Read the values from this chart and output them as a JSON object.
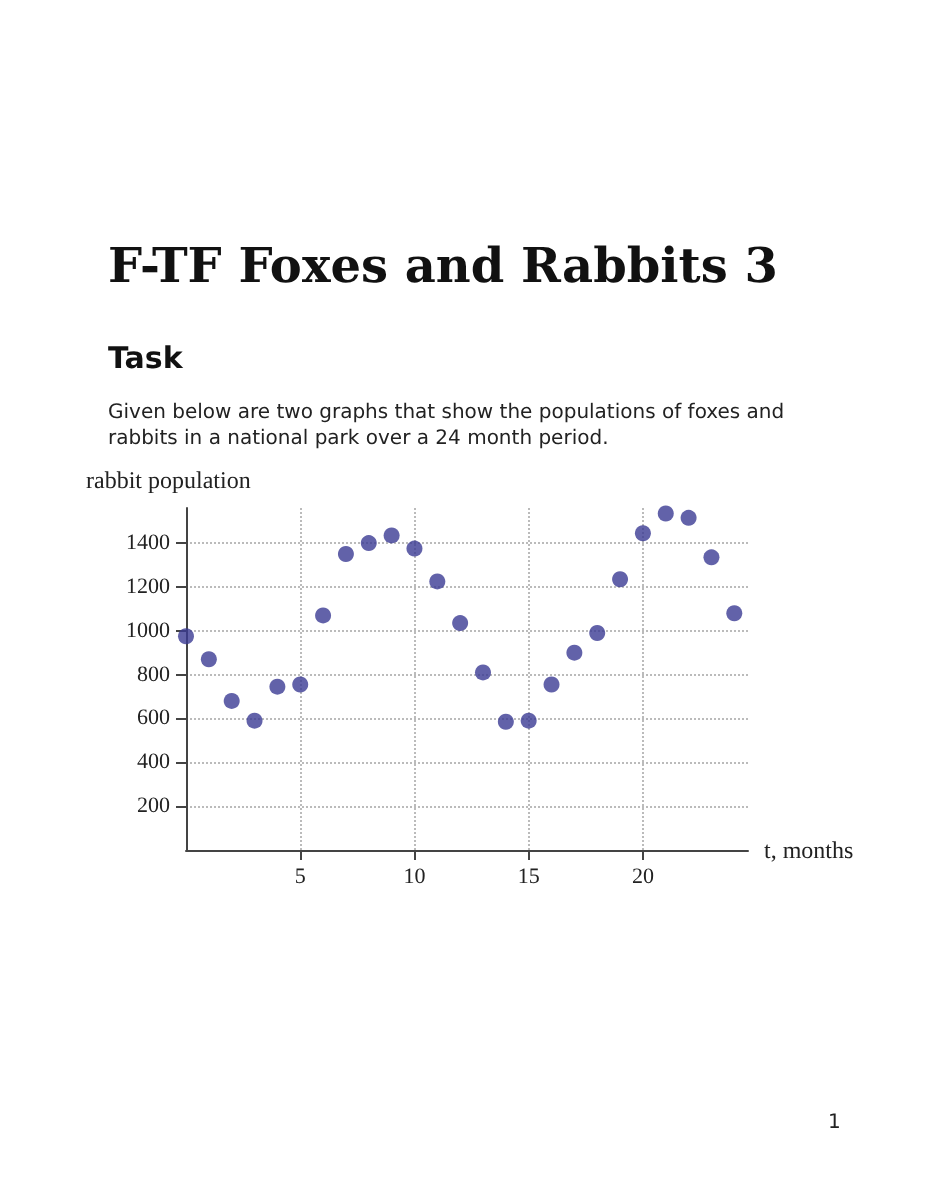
{
  "chart_data": {
    "type": "scatter",
    "title": "F-TF Foxes and Rabbits 3",
    "subtitle": "Task",
    "annotations": [
      "Given below are two graphs that show the populations of foxes and rabbits in a national park over a 24 month period.",
      "1"
    ],
    "xlabel": "t, months",
    "ylabel": "rabbit population",
    "x": [
      0,
      1,
      2,
      3,
      4,
      5,
      6,
      7,
      8,
      9,
      10,
      11,
      12,
      13,
      14,
      15,
      16,
      17,
      18,
      19,
      20,
      21,
      22,
      23,
      24
    ],
    "series": [
      {
        "color": "#3b3b93",
        "values": [
          975,
          870,
          680,
          590,
          745,
          755,
          1070,
          1350,
          1400,
          1435,
          1375,
          1225,
          1035,
          810,
          585,
          590,
          755,
          900,
          990,
          1235,
          1445,
          1535,
          1515,
          1335,
          1080
        ]
      }
    ],
    "xlim": [
      0,
      24.6
    ],
    "ylim": [
      0,
      1560
    ],
    "xticks": [
      5,
      10,
      15,
      20
    ],
    "yticks": [
      200,
      400,
      600,
      800,
      1000,
      1200,
      1400
    ],
    "grid": true,
    "marker": "circle"
  }
}
